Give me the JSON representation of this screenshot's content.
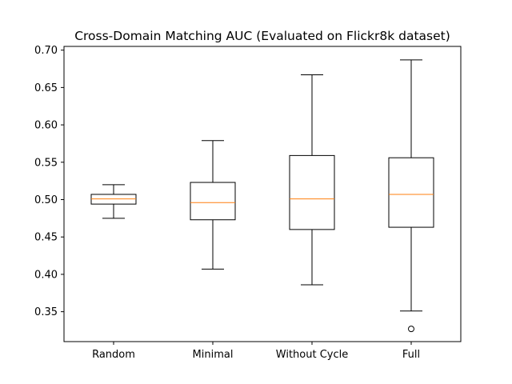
{
  "chart_data": {
    "type": "box",
    "title": "Cross-Domain Matching AUC (Evaluated on Flickr8k dataset)",
    "xlabel": "",
    "ylabel": "",
    "ylim": [
      0.31,
      0.705
    ],
    "yticks": [
      0.35,
      0.4,
      0.45,
      0.5,
      0.55,
      0.6,
      0.65,
      0.7
    ],
    "ytick_labels": [
      "0.35",
      "0.40",
      "0.45",
      "0.50",
      "0.55",
      "0.60",
      "0.65",
      "0.70"
    ],
    "grid": false,
    "categories": [
      "Random",
      "Minimal",
      "Without Cycle",
      "Full"
    ],
    "boxes": [
      {
        "whisker_low": 0.475,
        "q1": 0.494,
        "median": 0.501,
        "q3": 0.507,
        "whisker_high": 0.52,
        "outliers": []
      },
      {
        "whisker_low": 0.407,
        "q1": 0.473,
        "median": 0.496,
        "q3": 0.523,
        "whisker_high": 0.579,
        "outliers": []
      },
      {
        "whisker_low": 0.386,
        "q1": 0.46,
        "median": 0.501,
        "q3": 0.559,
        "whisker_high": 0.667,
        "outliers": []
      },
      {
        "whisker_low": 0.351,
        "q1": 0.463,
        "median": 0.507,
        "q3": 0.556,
        "whisker_high": 0.687,
        "outliers": [
          0.327
        ]
      }
    ],
    "colors": {
      "box": "#000000",
      "median": "#ff7f0e",
      "background": "#ffffff"
    }
  }
}
